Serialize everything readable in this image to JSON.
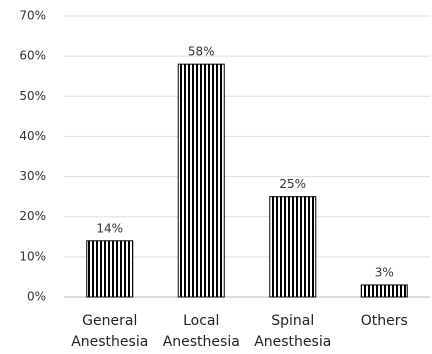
{
  "chart_data": {
    "type": "bar",
    "categories": [
      "General Anesthesia",
      "Local Anesthesia",
      "Spinal Anesthesia",
      "Others"
    ],
    "values": [
      14,
      58,
      25,
      3
    ],
    "value_labels": [
      "14%",
      "58%",
      "25%",
      "3%"
    ],
    "color": "#000000",
    "ylim": [
      0,
      70
    ],
    "yticks": [
      {
        "value": 0,
        "label": "0%"
      },
      {
        "value": 10,
        "label": "10%"
      },
      {
        "value": 20,
        "label": "20%"
      },
      {
        "value": 30,
        "label": "30%"
      },
      {
        "value": 40,
        "label": "40%"
      },
      {
        "value": 50,
        "label": "50%"
      },
      {
        "value": 60,
        "label": "60%"
      },
      {
        "value": 70,
        "label": "70%"
      }
    ],
    "grid": true
  }
}
